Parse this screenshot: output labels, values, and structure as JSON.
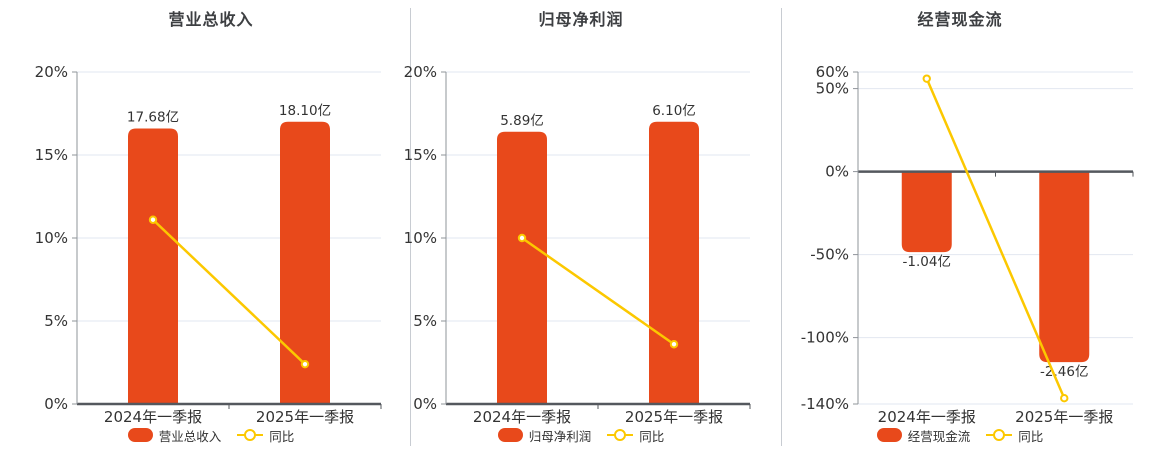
{
  "colors": {
    "bar": "#e8491b",
    "line": "#fcc800",
    "marker_fill": "#ffffff",
    "grid": "#e2e7f0",
    "axis": "#8f949a",
    "zero_axis": "#54585e",
    "divider": "#c8ccd2",
    "text": "#333333",
    "title": "#3d3f42",
    "background": "#ffffff"
  },
  "chart_data": [
    {
      "type": "bar+line",
      "title": "营业总收入",
      "categories": [
        "2024年一季报",
        "2025年一季报"
      ],
      "series": [
        {
          "name": "营业总收入",
          "type": "bar",
          "unit": "亿",
          "values": [
            17.68,
            18.1
          ],
          "labels": [
            "17.68亿",
            "18.10亿"
          ]
        },
        {
          "name": "同比",
          "type": "line",
          "unit": "%",
          "values": [
            11.1,
            2.4
          ]
        }
      ],
      "yticks": [
        {
          "label": "20%",
          "value": 20
        },
        {
          "label": "15%",
          "value": 15
        },
        {
          "label": "10%",
          "value": 10
        },
        {
          "label": "5%",
          "value": 5
        },
        {
          "label": "0%",
          "value": 0
        }
      ],
      "ylim": [
        0,
        20
      ],
      "bar_display_pct": [
        16.6,
        17.0
      ],
      "legend_position": "bottom",
      "grid": true
    },
    {
      "type": "bar+line",
      "title": "归母净利润",
      "categories": [
        "2024年一季报",
        "2025年一季报"
      ],
      "series": [
        {
          "name": "归母净利润",
          "type": "bar",
          "unit": "亿",
          "values": [
            5.89,
            6.1
          ],
          "labels": [
            "5.89亿",
            "6.10亿"
          ]
        },
        {
          "name": "同比",
          "type": "line",
          "unit": "%",
          "values": [
            10.0,
            3.6
          ]
        }
      ],
      "yticks": [
        {
          "label": "20%",
          "value": 20
        },
        {
          "label": "15%",
          "value": 15
        },
        {
          "label": "10%",
          "value": 10
        },
        {
          "label": "5%",
          "value": 5
        },
        {
          "label": "0%",
          "value": 0
        }
      ],
      "ylim": [
        0,
        20
      ],
      "bar_display_pct": [
        16.4,
        17.0
      ],
      "legend_position": "bottom",
      "grid": true
    },
    {
      "type": "bar+line",
      "title": "经营现金流",
      "categories": [
        "2024年一季报",
        "2025年一季报"
      ],
      "series": [
        {
          "name": "经营现金流",
          "type": "bar",
          "unit": "亿",
          "values": [
            -1.04,
            -2.46
          ],
          "labels": [
            "-1.04亿",
            "-2.46亿"
          ]
        },
        {
          "name": "同比",
          "type": "line",
          "unit": "%",
          "values": [
            56.0,
            -136.5
          ]
        }
      ],
      "yticks": [
        {
          "label": "60%",
          "value": 60
        },
        {
          "label": "50%",
          "value": 50
        },
        {
          "label": "0%",
          "value": 0
        },
        {
          "label": "-50%",
          "value": -50
        },
        {
          "label": "-100%",
          "value": -100
        },
        {
          "label": "-140%",
          "value": -140
        }
      ],
      "ylim": [
        -140,
        60
      ],
      "bar_display_pct": [
        -48.5,
        -114.8
      ],
      "legend_position": "bottom",
      "grid": true
    }
  ]
}
